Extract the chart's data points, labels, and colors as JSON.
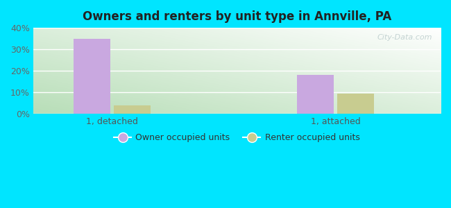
{
  "title": "Owners and renters by unit type in Annville, PA",
  "categories": [
    "1, detached",
    "1, attached"
  ],
  "owner_values": [
    35,
    18
  ],
  "renter_values": [
    4,
    9.5
  ],
  "owner_color": "#c9a8e0",
  "renter_color": "#c8cc90",
  "ylim": [
    0,
    40
  ],
  "yticks": [
    0,
    10,
    20,
    30,
    40
  ],
  "ytick_labels": [
    "0%",
    "10%",
    "20%",
    "30%",
    "40%"
  ],
  "legend_owner": "Owner occupied units",
  "legend_renter": "Renter occupied units",
  "outer_bg": "#00e5ff",
  "watermark": "City-Data.com",
  "bar_width": 0.28,
  "group_positions": [
    0.9,
    2.6
  ]
}
